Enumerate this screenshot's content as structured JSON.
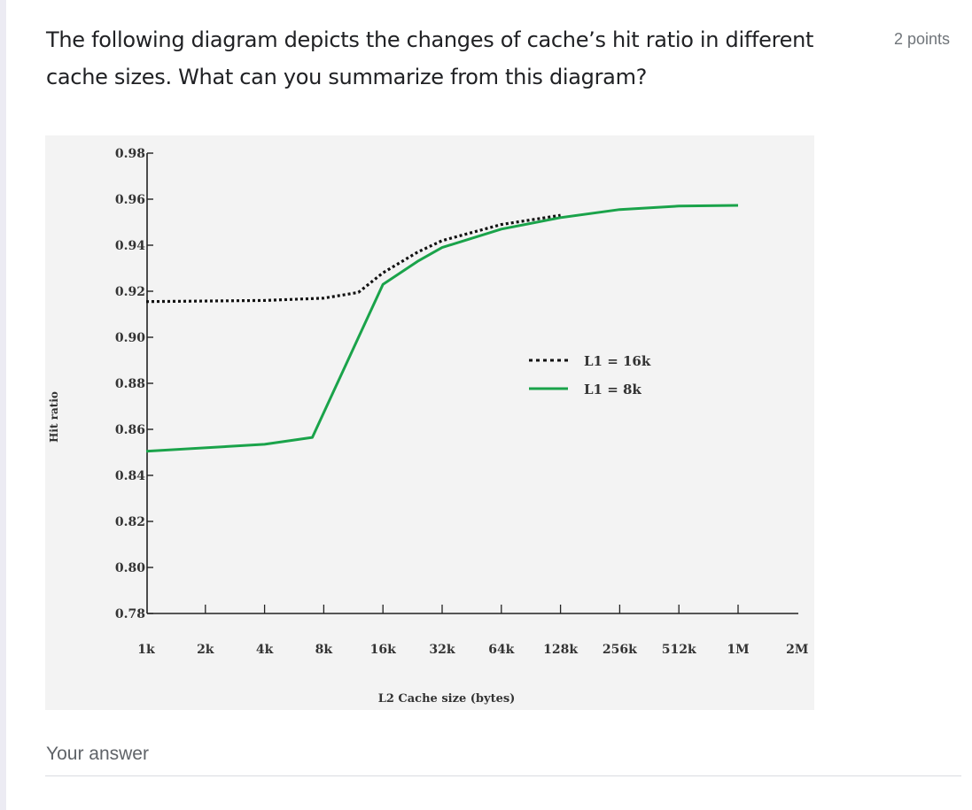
{
  "question": {
    "text": "The following diagram depicts the changes of cache’s hit ratio in different cache sizes. What can you summarize from this diagram?",
    "points": "2 points"
  },
  "answer": {
    "label": "Your answer",
    "value": ""
  },
  "chart_data": {
    "type": "line",
    "ylabel": "Hit ratio",
    "xlabel": "L2 Cache size (bytes)",
    "ylim": [
      0.78,
      0.98
    ],
    "yticks": [
      "0.98",
      "0.96",
      "0.94",
      "0.92",
      "0.90",
      "0.88",
      "0.86",
      "0.84",
      "0.82",
      "0.80",
      "0.78"
    ],
    "categories": [
      "1k",
      "2k",
      "4k",
      "8k",
      "16k",
      "32k",
      "64k",
      "128k",
      "256k",
      "512k",
      "1M",
      "2M"
    ],
    "legend_position": "right-middle",
    "series": [
      {
        "name": "L1 = 16k",
        "style": "dotted",
        "color": "#111111",
        "points": [
          [
            1,
            0.9155
          ],
          [
            4,
            0.916
          ],
          [
            8,
            0.917
          ],
          [
            12,
            0.9195
          ],
          [
            16,
            0.928
          ],
          [
            24,
            0.937
          ],
          [
            32,
            0.942
          ],
          [
            64,
            0.949
          ],
          [
            128,
            0.953
          ]
        ]
      },
      {
        "name": "L1 = 8k",
        "style": "solid",
        "color": "#1aa34a",
        "points": [
          [
            1,
            0.8505
          ],
          [
            4,
            0.8535
          ],
          [
            7,
            0.8565
          ],
          [
            16,
            0.923
          ],
          [
            24,
            0.933
          ],
          [
            32,
            0.939
          ],
          [
            64,
            0.947
          ],
          [
            128,
            0.952
          ],
          [
            256,
            0.9555
          ],
          [
            512,
            0.957
          ],
          [
            1024,
            0.9573
          ]
        ]
      }
    ]
  }
}
